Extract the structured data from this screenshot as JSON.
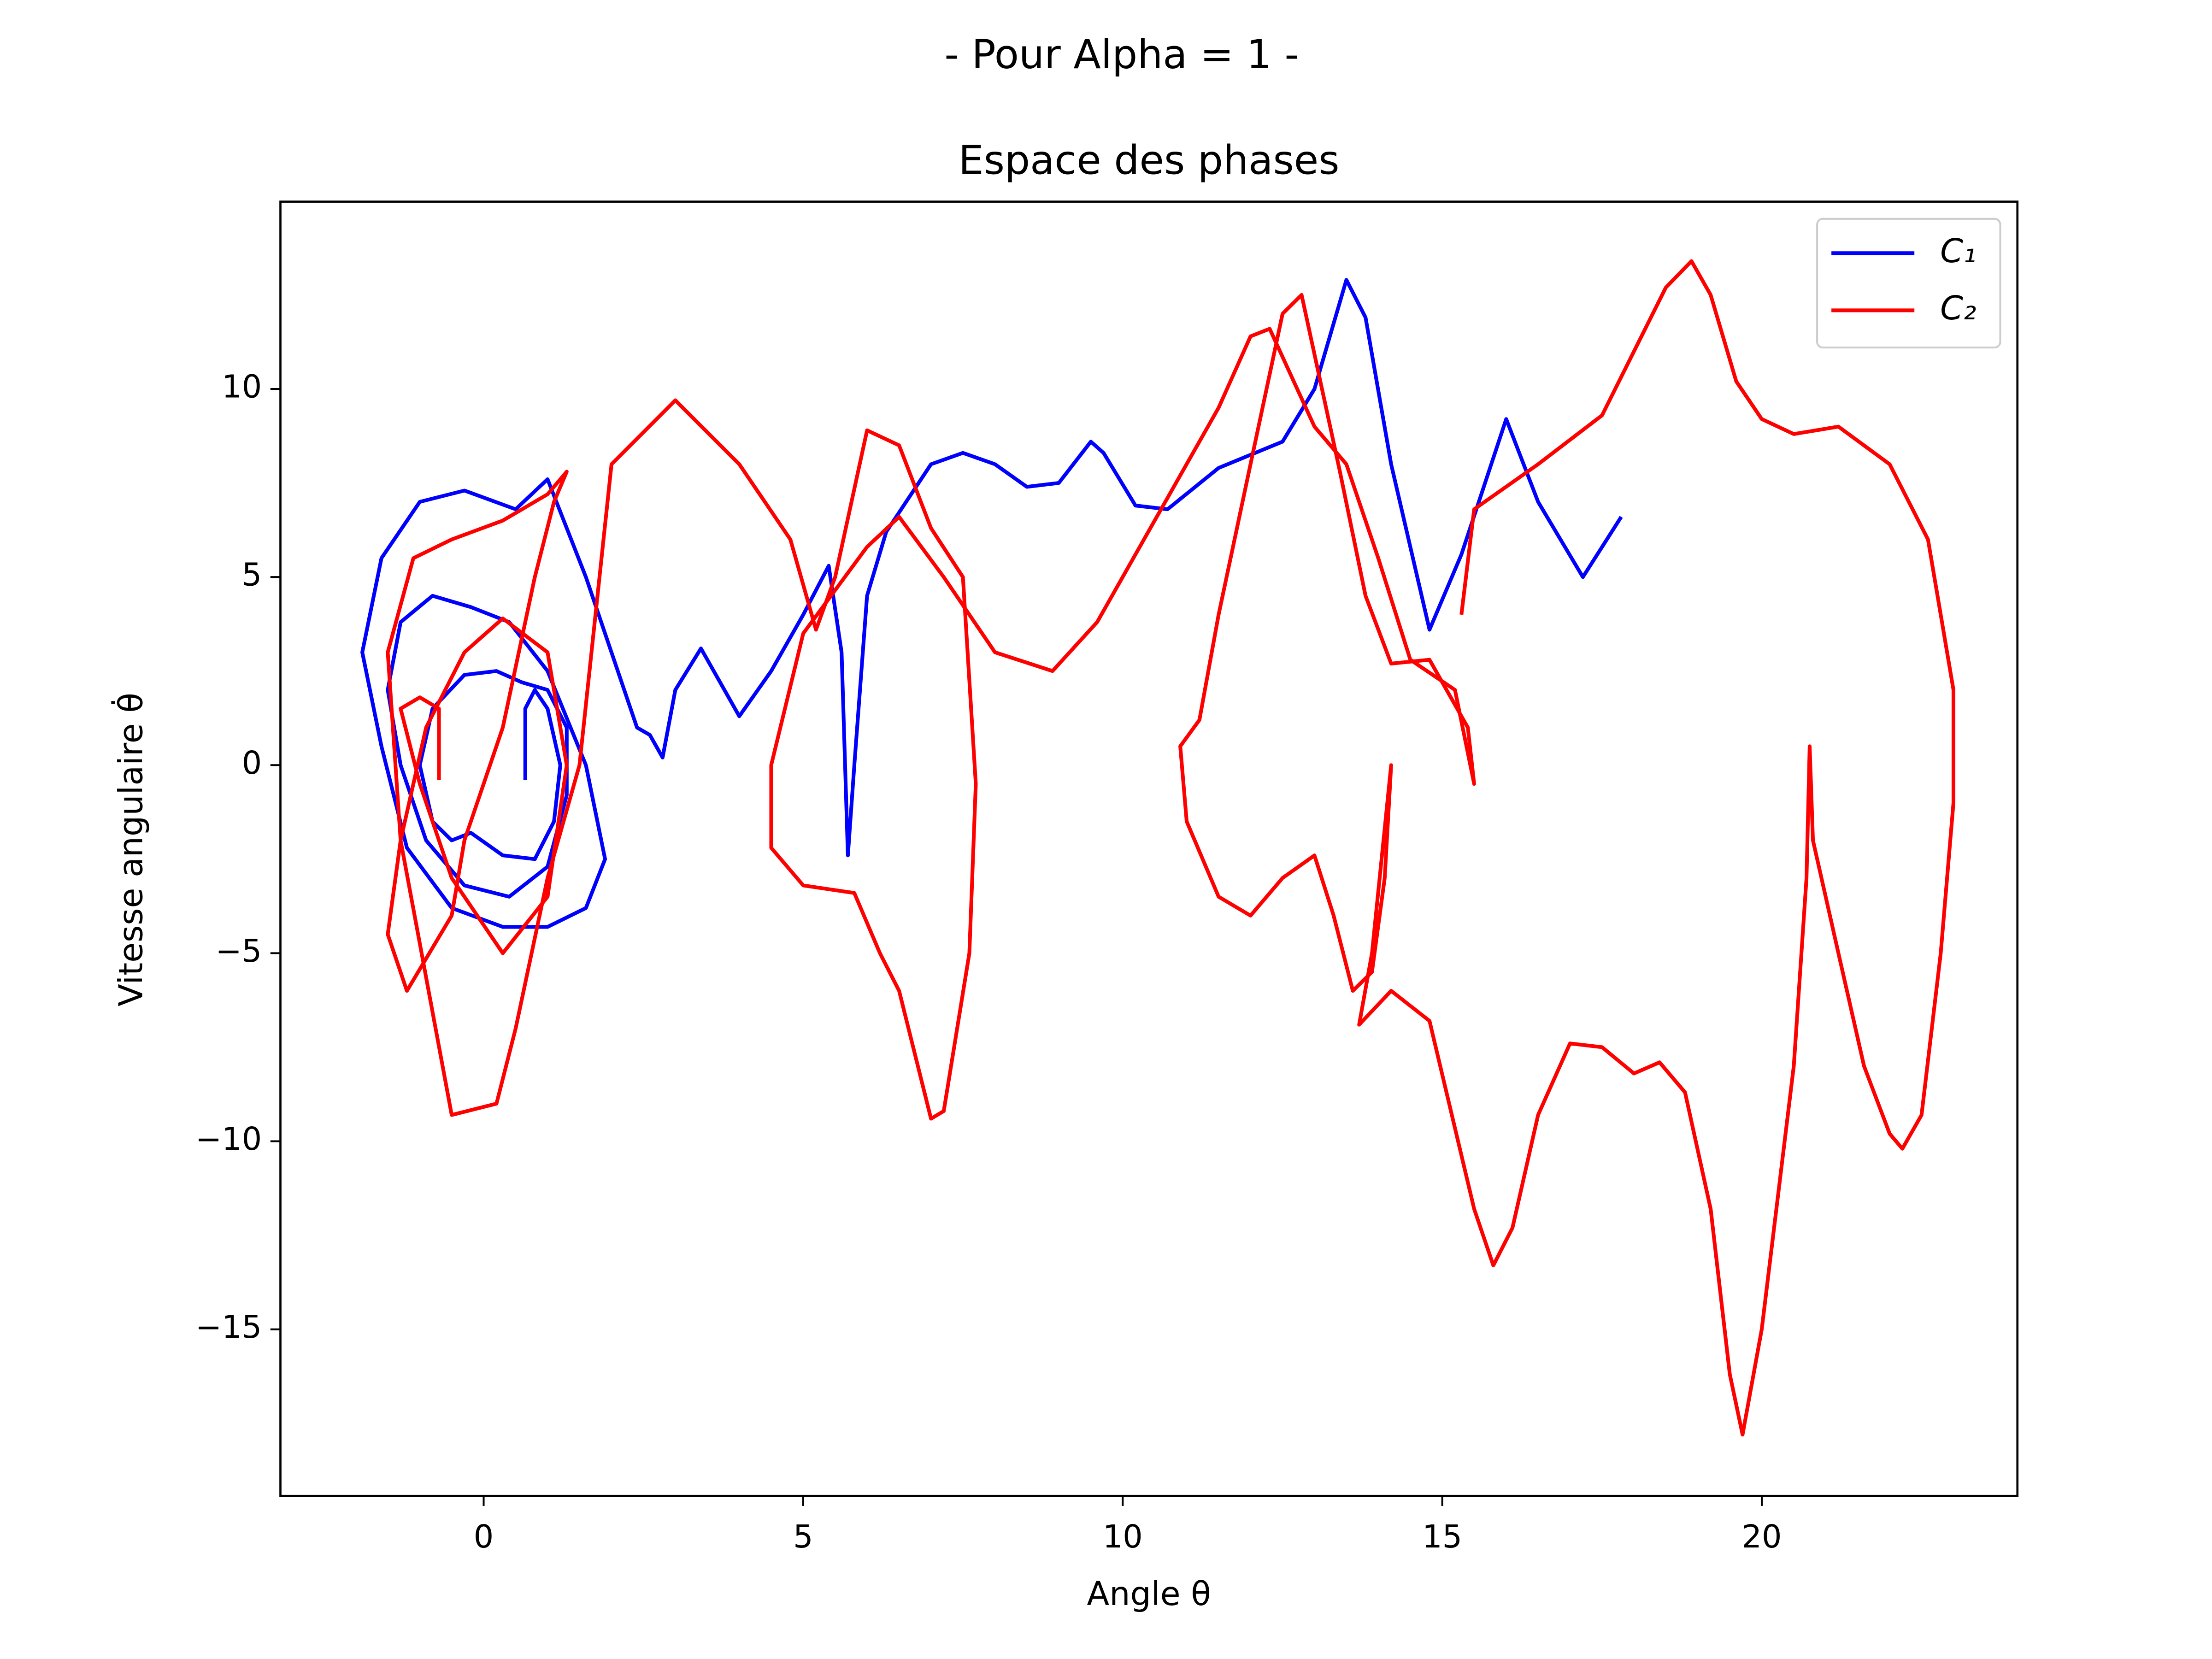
{
  "chart_data": {
    "type": "line",
    "suptitle": "- Pour Alpha = 1 -",
    "title": "Espace des phases",
    "x_label": "Angle θ",
    "y_label": "Vitesse angulaire θ̇",
    "xlim": [
      -3.18,
      24.0
    ],
    "ylim": [
      -19.43,
      14.98
    ],
    "xticks": [
      0,
      5,
      10,
      15,
      20
    ],
    "yticks": [
      {
        "value": -15,
        "label": "−15"
      },
      {
        "value": -10,
        "label": "−10"
      },
      {
        "value": -5,
        "label": "−5"
      },
      0,
      5,
      10
    ],
    "legend": "upper right",
    "series": [
      {
        "name": "C₁",
        "color": "#0000ff",
        "x": [
          0.65,
          0.65,
          0.8,
          1.0,
          1.2,
          1.1,
          0.8,
          0.3,
          -0.2,
          -0.5,
          -0.8,
          -1.0,
          -0.8,
          -0.3,
          0.2,
          0.6,
          1.0,
          1.3,
          1.3,
          1.0,
          0.4,
          -0.3,
          -0.9,
          -1.3,
          -1.5,
          -1.3,
          -0.8,
          -0.2,
          0.4,
          1.0,
          1.6,
          1.9,
          1.6,
          1.0,
          0.3,
          -0.5,
          -1.2,
          -1.6,
          -1.9,
          -1.6,
          -1.0,
          -0.3,
          0.5,
          1.0,
          1.6,
          2.1,
          2.4,
          2.6,
          2.8,
          3.0,
          3.4,
          3.7,
          4.0,
          4.5,
          5.0,
          5.4,
          5.6,
          5.7,
          5.8,
          6.0,
          6.3,
          7.0,
          7.5,
          8.0,
          8.5,
          9.0,
          9.5,
          9.7,
          10.2,
          10.7,
          11.5,
          12.5,
          13.0,
          13.5,
          13.8,
          14.2,
          14.8,
          15.3,
          16.0,
          16.5,
          17.2,
          17.8
        ],
        "values": [
          -0.4,
          1.5,
          2.0,
          1.5,
          0.0,
          -1.5,
          -2.5,
          -2.4,
          -1.8,
          -2.0,
          -1.5,
          0.0,
          1.5,
          2.4,
          2.5,
          2.2,
          2.0,
          1.0,
          -0.8,
          -2.7,
          -3.5,
          -3.2,
          -2.0,
          0.0,
          2.0,
          3.8,
          4.5,
          4.2,
          3.8,
          2.5,
          0.0,
          -2.5,
          -3.8,
          -4.3,
          -4.3,
          -3.8,
          -2.2,
          0.5,
          3.0,
          5.5,
          7.0,
          7.3,
          6.8,
          7.6,
          5.0,
          2.5,
          1.0,
          0.8,
          0.2,
          2.0,
          3.1,
          2.2,
          1.3,
          2.5,
          4.0,
          5.3,
          3.0,
          -2.4,
          0.0,
          4.5,
          6.2,
          8.0,
          8.3,
          8.0,
          7.4,
          7.5,
          8.6,
          8.3,
          6.9,
          6.8,
          7.9,
          8.6,
          10.0,
          12.9,
          11.9,
          8.0,
          3.6,
          5.6,
          9.2,
          7.0,
          5.0,
          6.6
        ]
      },
      {
        "name": "C₂",
        "color": "#ff0000",
        "x": [
          -0.7,
          -0.7,
          -1.0,
          -1.3,
          -1.0,
          -0.5,
          0.3,
          1.0,
          1.3,
          1.0,
          0.3,
          -0.3,
          -0.9,
          -1.3,
          -1.5,
          -1.2,
          -0.5,
          -0.3,
          0.3,
          0.8,
          1.1,
          1.3,
          1.0,
          0.3,
          -0.5,
          -1.1,
          -1.5,
          -1.3,
          -0.5,
          0.2,
          0.5,
          1.0,
          1.5,
          2.0,
          3.0,
          4.0,
          4.8,
          5.2,
          5.5,
          6.0,
          6.5,
          7.0,
          7.5,
          7.7,
          7.6,
          7.2,
          7.0,
          6.5,
          6.2,
          5.8,
          5.0,
          4.5,
          4.5,
          5.0,
          6.0,
          6.5,
          7.2,
          8.0,
          8.9,
          9.6,
          10.5,
          11.5,
          12.0,
          12.3,
          13.0,
          13.5,
          14.0,
          14.5,
          15.2,
          15.5,
          15.4,
          14.8,
          14.2,
          13.8,
          13.4,
          12.8,
          12.5,
          12.0,
          11.5,
          11.2,
          10.9,
          11.0,
          11.5,
          12.0,
          12.5,
          13.0,
          13.3,
          13.6,
          13.9,
          14.1,
          14.2,
          13.9,
          13.7,
          14.2,
          14.8,
          15.5,
          15.8,
          16.1,
          16.5,
          17.0,
          17.5,
          18.0,
          18.4,
          18.8,
          19.2,
          19.5,
          19.7,
          20.0,
          20.5,
          20.7,
          20.75,
          20.8,
          21.2,
          21.6,
          22.0,
          22.2,
          22.5,
          22.8,
          23.0,
          23.0,
          22.6,
          22.0,
          21.2,
          20.5,
          20.0,
          19.6,
          19.2,
          18.9,
          18.5,
          17.5,
          16.5,
          15.5,
          15.3
        ],
        "values": [
          -0.4,
          1.5,
          1.8,
          1.5,
          -0.5,
          -3.0,
          -5.0,
          -3.5,
          0.0,
          3.0,
          3.9,
          3.0,
          1.0,
          -2.0,
          -4.5,
          -6.0,
          -4.0,
          -2.0,
          1.0,
          5.0,
          7.0,
          7.8,
          7.2,
          6.5,
          6.0,
          5.5,
          3.0,
          -2.0,
          -9.3,
          -9.0,
          -7.0,
          -3.0,
          0.0,
          8.0,
          9.7,
          8.0,
          6.0,
          3.6,
          5.0,
          8.9,
          8.5,
          6.3,
          5.0,
          -0.5,
          -5.0,
          -9.2,
          -9.4,
          -6.0,
          -5.0,
          -3.4,
          -3.2,
          -2.2,
          0.0,
          3.5,
          5.8,
          6.6,
          5.0,
          3.0,
          2.5,
          3.8,
          6.5,
          9.5,
          11.4,
          11.6,
          9.0,
          8.0,
          5.5,
          2.8,
          2.0,
          -0.5,
          1.0,
          2.8,
          2.7,
          4.5,
          7.8,
          12.5,
          12.0,
          8.0,
          4.0,
          1.2,
          0.5,
          -1.5,
          -3.5,
          -4.0,
          -3.0,
          -2.4,
          -4.0,
          -6.0,
          -5.5,
          -3.0,
          0.0,
          -5.0,
          -6.9,
          -6.0,
          -6.8,
          -11.8,
          -13.3,
          -12.3,
          -9.3,
          -7.4,
          -7.5,
          -8.2,
          -7.9,
          -8.7,
          -11.8,
          -16.2,
          -17.8,
          -15.0,
          -8.0,
          -3.0,
          0.5,
          -2.0,
          -5.0,
          -8.0,
          -9.8,
          -10.2,
          -9.3,
          -5.0,
          -1.0,
          2.0,
          6.0,
          8.0,
          9.0,
          8.8,
          9.2,
          10.2,
          12.5,
          13.4,
          12.7,
          9.3,
          8.0,
          6.8,
          4.0
        ]
      }
    ]
  }
}
